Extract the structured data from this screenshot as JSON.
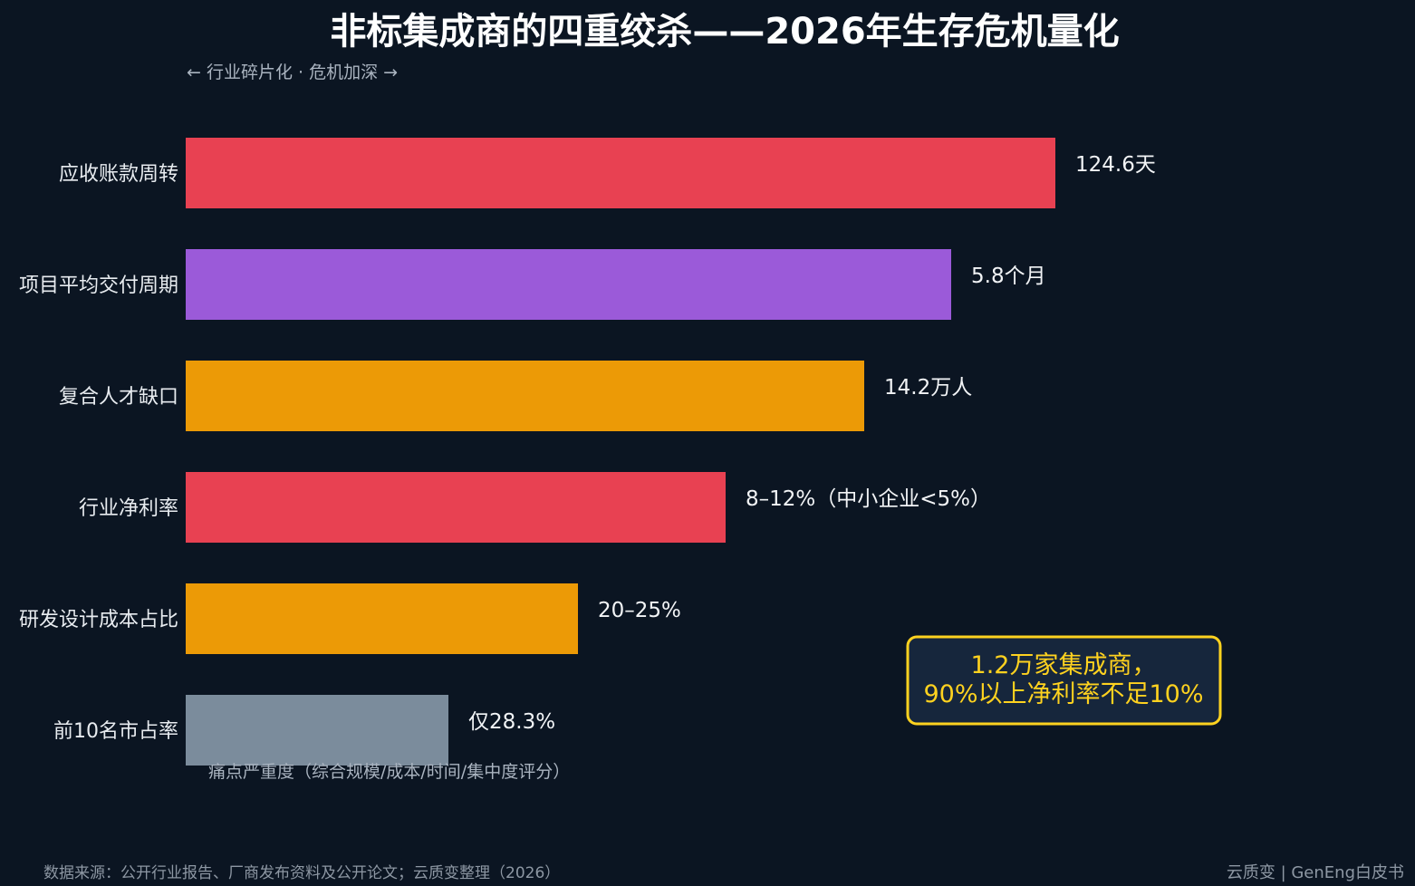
{
  "chart_data": {
    "type": "bar",
    "orientation": "horizontal",
    "title": "非标集成商的四重绞杀——2026年生存危机量化",
    "subtitle": "← 行业碎片化 · 危机加深 →",
    "xlabel": "痛点严重度（综合规模/成本/时间/集中度评分）",
    "ylabel": "",
    "xlim": [
      0,
      10
    ],
    "grid": false,
    "categories": [
      "应收账款周转",
      "项目平均交付周期",
      "复合人才缺口",
      "行业净利率",
      "研发设计成本占比",
      "前10名市占率"
    ],
    "values": [
      9.6,
      8.45,
      7.49,
      5.96,
      4.33,
      2.9
    ],
    "value_labels": [
      "124.6天",
      "5.8个月",
      "14.2万人",
      "8–12%（中小企业<5%）",
      "20–25%",
      "仅28.3%"
    ],
    "bar_colors": [
      "#e84152",
      "#9b5ad9",
      "#ec9a06",
      "#e84152",
      "#ec9a06",
      "#7b8c9c"
    ]
  },
  "callout": {
    "line1": "1.2万家集成商，",
    "line2": "90%以上净利率不足10%",
    "border_color": "#ffd21f",
    "fill_color": "#16263c"
  },
  "footer": {
    "source": "数据来源：公开行业报告、厂商发布资料及公开论文；云质变整理（2026）",
    "brand": "云质变 | GenEng白皮书"
  }
}
